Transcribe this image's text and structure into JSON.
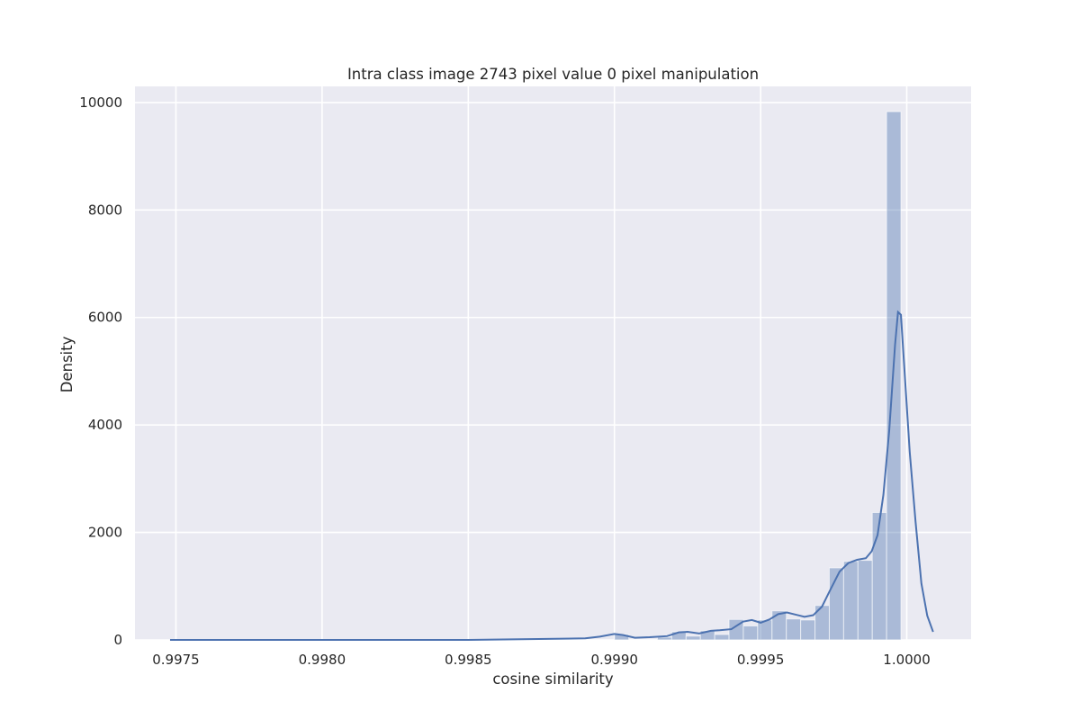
{
  "chart_data": {
    "type": "bar",
    "title": "Intra class image 2743 pixel value 0 pixel manipulation",
    "xlabel": "cosine similarity",
    "ylabel": "Density",
    "xlim": [
      0.99736,
      1.00022
    ],
    "ylim": [
      0,
      10300
    ],
    "xticks": [
      {
        "value": 0.9975,
        "label": "0.9975"
      },
      {
        "value": 0.998,
        "label": "0.9980"
      },
      {
        "value": 0.9985,
        "label": "0.9985"
      },
      {
        "value": 0.999,
        "label": "0.9990"
      },
      {
        "value": 0.9995,
        "label": "0.9995"
      },
      {
        "value": 1.0,
        "label": "1.0000"
      }
    ],
    "yticks": [
      {
        "value": 0,
        "label": "0"
      },
      {
        "value": 2000,
        "label": "2000"
      },
      {
        "value": 4000,
        "label": "4000"
      },
      {
        "value": 6000,
        "label": "6000"
      },
      {
        "value": 8000,
        "label": "8000"
      },
      {
        "value": 10000,
        "label": "10000"
      }
    ],
    "grid": true,
    "bar_color": "#4c72b0",
    "bar_opacity": 0.4,
    "line_color": "#4c72b0",
    "background_color": "#eaeaf2",
    "bins": {
      "start": 0.997477,
      "width": 4.87e-05,
      "counts": [
        20,
        0,
        0,
        0,
        0,
        0,
        0,
        0,
        0,
        0,
        0,
        0,
        0,
        0,
        0,
        0,
        0,
        0,
        0,
        0,
        0,
        0,
        0,
        0,
        0,
        0,
        0,
        0,
        0,
        0,
        0,
        0,
        0,
        0,
        0,
        0,
        0,
        0,
        0,
        0,
        0,
        0,
        0,
        0,
        0,
        0,
        0,
        0,
        0,
        0,
        0,
        0,
        0,
        0,
        0,
        0,
        0,
        0,
        0,
        0,
        0,
        0,
        0,
        0,
        0,
        0,
        0,
        0,
        0,
        0,
        0,
        0,
        0,
        0,
        0,
        0,
        0,
        0,
        0,
        0,
        0,
        0,
        0,
        0,
        0,
        0,
        0,
        0,
        0,
        0,
        0,
        0,
        0,
        0,
        0,
        0,
        0,
        0,
        0,
        0,
        0,
        0,
        0,
        0,
        0,
        0,
        0,
        0,
        0,
        0,
        0,
        0,
        0,
        0,
        0,
        0,
        0,
        0,
        0,
        0,
        0,
        0,
        0,
        0,
        0,
        0,
        0,
        0,
        0,
        0,
        0,
        0,
        0,
        0,
        0,
        0,
        0,
        0,
        0,
        0,
        0,
        0,
        0,
        0,
        0,
        0,
        0,
        0,
        0,
        0,
        0,
        0,
        0,
        0,
        0,
        0,
        0,
        0,
        0,
        0,
        0,
        0,
        0,
        0,
        0,
        0,
        0,
        0,
        0,
        0,
        0,
        0,
        0,
        0,
        0,
        0,
        0,
        0,
        0,
        0,
        0,
        0,
        0,
        0,
        0,
        0,
        0,
        0,
        0,
        0,
        0,
        0,
        0,
        0,
        0,
        0,
        0,
        0,
        0,
        0
      ]
    },
    "histogram": [
      {
        "x0": 0.999,
        "x1": 0.999049,
        "density": 100
      },
      {
        "x0": 0.999049,
        "x1": 0.999098,
        "density": 0
      },
      {
        "x0": 0.999098,
        "x1": 0.999147,
        "density": 0
      },
      {
        "x0": 0.999147,
        "x1": 0.999196,
        "density": 50
      },
      {
        "x0": 0.999196,
        "x1": 0.999245,
        "density": 150
      },
      {
        "x0": 0.999245,
        "x1": 0.999294,
        "density": 70
      },
      {
        "x0": 0.999294,
        "x1": 0.999343,
        "density": 170
      },
      {
        "x0": 0.999343,
        "x1": 0.999392,
        "density": 100
      },
      {
        "x0": 0.999392,
        "x1": 0.999441,
        "density": 380
      },
      {
        "x0": 0.999441,
        "x1": 0.99949,
        "density": 260
      },
      {
        "x0": 0.99949,
        "x1": 0.999539,
        "density": 370
      },
      {
        "x0": 0.999539,
        "x1": 0.999588,
        "density": 540
      },
      {
        "x0": 0.999588,
        "x1": 0.999637,
        "density": 390
      },
      {
        "x0": 0.999637,
        "x1": 0.999686,
        "density": 370
      },
      {
        "x0": 0.999686,
        "x1": 0.999735,
        "density": 640
      },
      {
        "x0": 0.999735,
        "x1": 0.999784,
        "density": 1340
      },
      {
        "x0": 0.999784,
        "x1": 0.999833,
        "density": 1460
      },
      {
        "x0": 0.999833,
        "x1": 0.999882,
        "density": 1480
      },
      {
        "x0": 0.999882,
        "x1": 0.999931,
        "density": 2370
      },
      {
        "x0": 0.999931,
        "x1": 0.99998,
        "density": 9830
      }
    ],
    "kde": {
      "x": [
        0.99748,
        0.998,
        0.9985,
        0.9988,
        0.9989,
        0.99895,
        0.999,
        0.99903,
        0.99907,
        0.99912,
        0.99918,
        0.99922,
        0.99925,
        0.99929,
        0.99933,
        0.99936,
        0.9994,
        0.99944,
        0.99947,
        0.9995,
        0.99953,
        0.99956,
        0.99959,
        0.99962,
        0.99965,
        0.99968,
        0.99971,
        0.99974,
        0.99977,
        0.9998,
        0.99983,
        0.99986,
        0.99988,
        0.9999,
        0.99992,
        0.99994,
        0.99996,
        0.99997,
        0.99998,
        0.99999,
        1.00001,
        1.00003,
        1.00005,
        1.00007,
        1.00009
      ],
      "y": [
        0,
        0,
        0,
        20,
        30,
        60,
        110,
        90,
        40,
        50,
        70,
        140,
        150,
        120,
        170,
        180,
        200,
        340,
        370,
        320,
        380,
        480,
        510,
        470,
        430,
        460,
        620,
        950,
        1270,
        1430,
        1490,
        1520,
        1650,
        1950,
        2700,
        3900,
        5500,
        6100,
        6050,
        5200,
        3500,
        2200,
        1050,
        450,
        150
      ]
    }
  }
}
